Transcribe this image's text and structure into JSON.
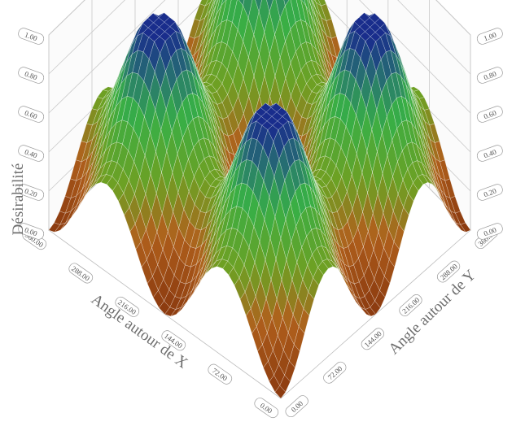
{
  "chart_data": {
    "type": "surface3d",
    "title": "",
    "xlabel": "Angle autour de X",
    "ylabel": "Angle autour de Y",
    "zlabel": "Désirabilité",
    "x_ticks": [
      "0.00",
      "72.00",
      "144.00",
      "216.00",
      "288.00",
      "360.00"
    ],
    "y_ticks": [
      "0.00",
      "72.00",
      "144.00",
      "216.00",
      "288.00",
      "360.00"
    ],
    "z_ticks": [
      "0.00",
      "0.20",
      "0.40",
      "0.60",
      "0.80",
      "1.00"
    ],
    "xlim": [
      0,
      360
    ],
    "ylim": [
      0,
      360
    ],
    "zlim": [
      0,
      1
    ],
    "grid": true,
    "colormap": [
      "#8b3a0f",
      "#b5651d",
      "#6aa820",
      "#3cb44a",
      "#1e3a8a"
    ]
  }
}
